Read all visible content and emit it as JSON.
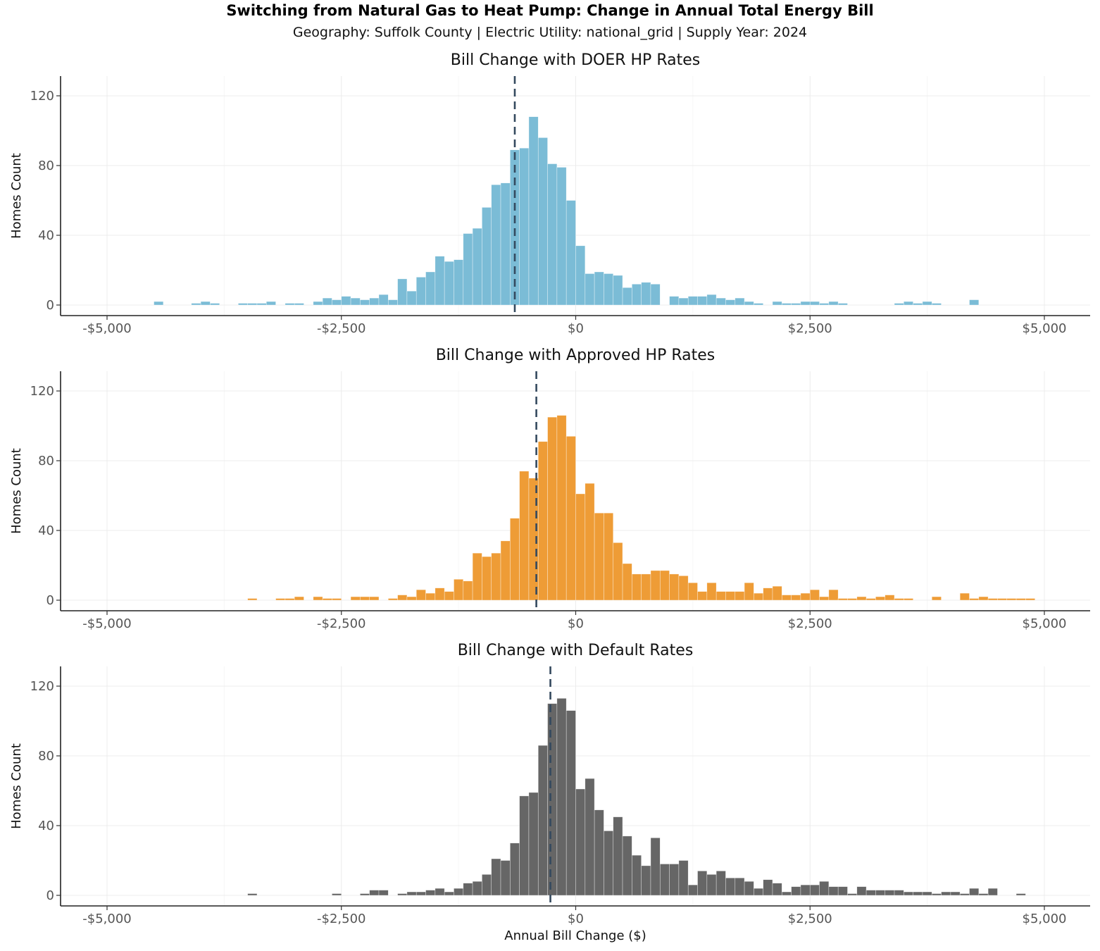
{
  "title": "Switching from Natural Gas to Heat Pump: Change in Annual Total Energy Bill",
  "subtitle": "Geography: Suffolk County  | Electric Utility: national_grid | Supply Year: 2024",
  "xlabel": "Annual Bill Change ($)",
  "ylabel": "Homes Count",
  "chart_data": [
    {
      "type": "histogram",
      "title": "Bill Change with DOER HP Rates",
      "color": "#7BBCD6",
      "xlim": [
        -5000,
        5000
      ],
      "ylim": [
        0,
        130
      ],
      "x_ticks": [
        -5000,
        -2500,
        0,
        2500,
        5000
      ],
      "x_tick_labels": [
        "-$5,000",
        "-$2,500",
        "$0",
        "$2,500",
        "$5,000"
      ],
      "y_ticks": [
        0,
        40,
        80,
        120
      ],
      "y_tick_labels": [
        "0",
        "40",
        "80",
        "120"
      ],
      "bin_width": 100,
      "mean_line": -650,
      "bins": [
        [
          -4450,
          2
        ],
        [
          -4050,
          1
        ],
        [
          -3950,
          2
        ],
        [
          -3850,
          1
        ],
        [
          -3550,
          1
        ],
        [
          -3450,
          1
        ],
        [
          -3350,
          1
        ],
        [
          -3250,
          2
        ],
        [
          -3050,
          1
        ],
        [
          -2950,
          1
        ],
        [
          -2750,
          2
        ],
        [
          -2650,
          4
        ],
        [
          -2550,
          3
        ],
        [
          -2450,
          5
        ],
        [
          -2350,
          4
        ],
        [
          -2250,
          3
        ],
        [
          -2150,
          4
        ],
        [
          -2050,
          6
        ],
        [
          -1950,
          3
        ],
        [
          -1850,
          15
        ],
        [
          -1750,
          8
        ],
        [
          -1650,
          16
        ],
        [
          -1550,
          19
        ],
        [
          -1450,
          28
        ],
        [
          -1350,
          25
        ],
        [
          -1250,
          26
        ],
        [
          -1150,
          41
        ],
        [
          -1050,
          44
        ],
        [
          -950,
          56
        ],
        [
          -850,
          69
        ],
        [
          -750,
          70
        ],
        [
          -650,
          89
        ],
        [
          -550,
          90
        ],
        [
          -450,
          108
        ],
        [
          -350,
          96
        ],
        [
          -250,
          81
        ],
        [
          -150,
          79
        ],
        [
          -50,
          60
        ],
        [
          50,
          34
        ],
        [
          150,
          18
        ],
        [
          250,
          19
        ],
        [
          350,
          18
        ],
        [
          450,
          17
        ],
        [
          550,
          10
        ],
        [
          650,
          12
        ],
        [
          750,
          13
        ],
        [
          850,
          12
        ],
        [
          1050,
          5
        ],
        [
          1150,
          4
        ],
        [
          1250,
          5
        ],
        [
          1350,
          5
        ],
        [
          1450,
          6
        ],
        [
          1550,
          4
        ],
        [
          1650,
          3
        ],
        [
          1750,
          4
        ],
        [
          1850,
          2
        ],
        [
          1950,
          1
        ],
        [
          2150,
          2
        ],
        [
          2250,
          1
        ],
        [
          2350,
          1
        ],
        [
          2450,
          2
        ],
        [
          2550,
          2
        ],
        [
          2650,
          1
        ],
        [
          2750,
          2
        ],
        [
          2850,
          1
        ],
        [
          3450,
          1
        ],
        [
          3550,
          2
        ],
        [
          3650,
          1
        ],
        [
          3750,
          2
        ],
        [
          3850,
          1
        ],
        [
          4250,
          3
        ]
      ]
    },
    {
      "type": "histogram",
      "title": "Bill Change with Approved HP Rates",
      "color": "#EE9C36",
      "xlim": [
        -5000,
        5000
      ],
      "ylim": [
        0,
        130
      ],
      "x_ticks": [
        -5000,
        -2500,
        0,
        2500,
        5000
      ],
      "x_tick_labels": [
        "-$5,000",
        "-$2,500",
        "$0",
        "$2,500",
        "$5,000"
      ],
      "y_ticks": [
        0,
        40,
        80,
        120
      ],
      "y_tick_labels": [
        "0",
        "40",
        "80",
        "120"
      ],
      "bin_width": 100,
      "mean_line": -420,
      "bins": [
        [
          -3450,
          1
        ],
        [
          -3150,
          1
        ],
        [
          -3050,
          1
        ],
        [
          -2950,
          2
        ],
        [
          -2750,
          2
        ],
        [
          -2650,
          1
        ],
        [
          -2550,
          1
        ],
        [
          -2350,
          2
        ],
        [
          -2250,
          2
        ],
        [
          -2150,
          2
        ],
        [
          -1950,
          1
        ],
        [
          -1850,
          3
        ],
        [
          -1750,
          2
        ],
        [
          -1650,
          6
        ],
        [
          -1550,
          4
        ],
        [
          -1450,
          7
        ],
        [
          -1350,
          5
        ],
        [
          -1250,
          12
        ],
        [
          -1150,
          11
        ],
        [
          -1050,
          27
        ],
        [
          -950,
          25
        ],
        [
          -850,
          27
        ],
        [
          -750,
          34
        ],
        [
          -650,
          47
        ],
        [
          -550,
          74
        ],
        [
          -450,
          70
        ],
        [
          -350,
          91
        ],
        [
          -250,
          105
        ],
        [
          -150,
          106
        ],
        [
          -50,
          94
        ],
        [
          50,
          61
        ],
        [
          150,
          67
        ],
        [
          250,
          50
        ],
        [
          350,
          50
        ],
        [
          450,
          33
        ],
        [
          550,
          21
        ],
        [
          650,
          15
        ],
        [
          750,
          15
        ],
        [
          850,
          17
        ],
        [
          950,
          17
        ],
        [
          1050,
          15
        ],
        [
          1150,
          14
        ],
        [
          1250,
          10
        ],
        [
          1350,
          5
        ],
        [
          1450,
          10
        ],
        [
          1550,
          5
        ],
        [
          1650,
          5
        ],
        [
          1750,
          5
        ],
        [
          1850,
          10
        ],
        [
          1950,
          4
        ],
        [
          2050,
          7
        ],
        [
          2150,
          8
        ],
        [
          2250,
          3
        ],
        [
          2350,
          3
        ],
        [
          2450,
          4
        ],
        [
          2550,
          6
        ],
        [
          2650,
          2
        ],
        [
          2750,
          6
        ],
        [
          2850,
          1
        ],
        [
          2950,
          1
        ],
        [
          3050,
          2
        ],
        [
          3150,
          1
        ],
        [
          3250,
          2
        ],
        [
          3350,
          3
        ],
        [
          3450,
          1
        ],
        [
          3550,
          1
        ],
        [
          3850,
          2
        ],
        [
          4150,
          4
        ],
        [
          4250,
          1
        ],
        [
          4350,
          2
        ],
        [
          4450,
          1
        ],
        [
          4550,
          1
        ],
        [
          4650,
          1
        ],
        [
          4750,
          1
        ],
        [
          4850,
          1
        ]
      ]
    },
    {
      "type": "histogram",
      "title": "Bill Change with Default Rates",
      "color": "#666666",
      "xlim": [
        -5000,
        5000
      ],
      "ylim": [
        0,
        130
      ],
      "x_ticks": [
        -5000,
        -2500,
        0,
        2500,
        5000
      ],
      "x_tick_labels": [
        "-$5,000",
        "-$2,500",
        "$0",
        "$2,500",
        "$5,000"
      ],
      "y_ticks": [
        0,
        40,
        80,
        120
      ],
      "y_tick_labels": [
        "0",
        "40",
        "80",
        "120"
      ],
      "bin_width": 100,
      "mean_line": -270,
      "bins": [
        [
          -3450,
          1
        ],
        [
          -2550,
          1
        ],
        [
          -2250,
          1
        ],
        [
          -2150,
          3
        ],
        [
          -2050,
          3
        ],
        [
          -1850,
          1
        ],
        [
          -1750,
          2
        ],
        [
          -1650,
          2
        ],
        [
          -1550,
          3
        ],
        [
          -1450,
          4
        ],
        [
          -1350,
          2
        ],
        [
          -1250,
          4
        ],
        [
          -1150,
          7
        ],
        [
          -1050,
          8
        ],
        [
          -950,
          12
        ],
        [
          -850,
          21
        ],
        [
          -750,
          20
        ],
        [
          -650,
          30
        ],
        [
          -550,
          57
        ],
        [
          -450,
          59
        ],
        [
          -350,
          86
        ],
        [
          -250,
          110
        ],
        [
          -150,
          113
        ],
        [
          -50,
          106
        ],
        [
          50,
          61
        ],
        [
          150,
          67
        ],
        [
          250,
          49
        ],
        [
          350,
          37
        ],
        [
          450,
          45
        ],
        [
          550,
          34
        ],
        [
          650,
          23
        ],
        [
          750,
          17
        ],
        [
          850,
          33
        ],
        [
          950,
          18
        ],
        [
          1050,
          18
        ],
        [
          1150,
          20
        ],
        [
          1250,
          6
        ],
        [
          1350,
          14
        ],
        [
          1450,
          12
        ],
        [
          1550,
          14
        ],
        [
          1650,
          10
        ],
        [
          1750,
          10
        ],
        [
          1850,
          8
        ],
        [
          1950,
          4
        ],
        [
          2050,
          9
        ],
        [
          2150,
          7
        ],
        [
          2250,
          2
        ],
        [
          2350,
          5
        ],
        [
          2450,
          6
        ],
        [
          2550,
          6
        ],
        [
          2650,
          8
        ],
        [
          2750,
          5
        ],
        [
          2850,
          5
        ],
        [
          2950,
          1
        ],
        [
          3050,
          5
        ],
        [
          3150,
          3
        ],
        [
          3250,
          3
        ],
        [
          3350,
          3
        ],
        [
          3450,
          3
        ],
        [
          3550,
          2
        ],
        [
          3650,
          2
        ],
        [
          3750,
          2
        ],
        [
          3850,
          1
        ],
        [
          3950,
          2
        ],
        [
          4050,
          2
        ],
        [
          4150,
          1
        ],
        [
          4250,
          4
        ],
        [
          4350,
          1
        ],
        [
          4450,
          4
        ],
        [
          4750,
          1
        ]
      ]
    }
  ]
}
